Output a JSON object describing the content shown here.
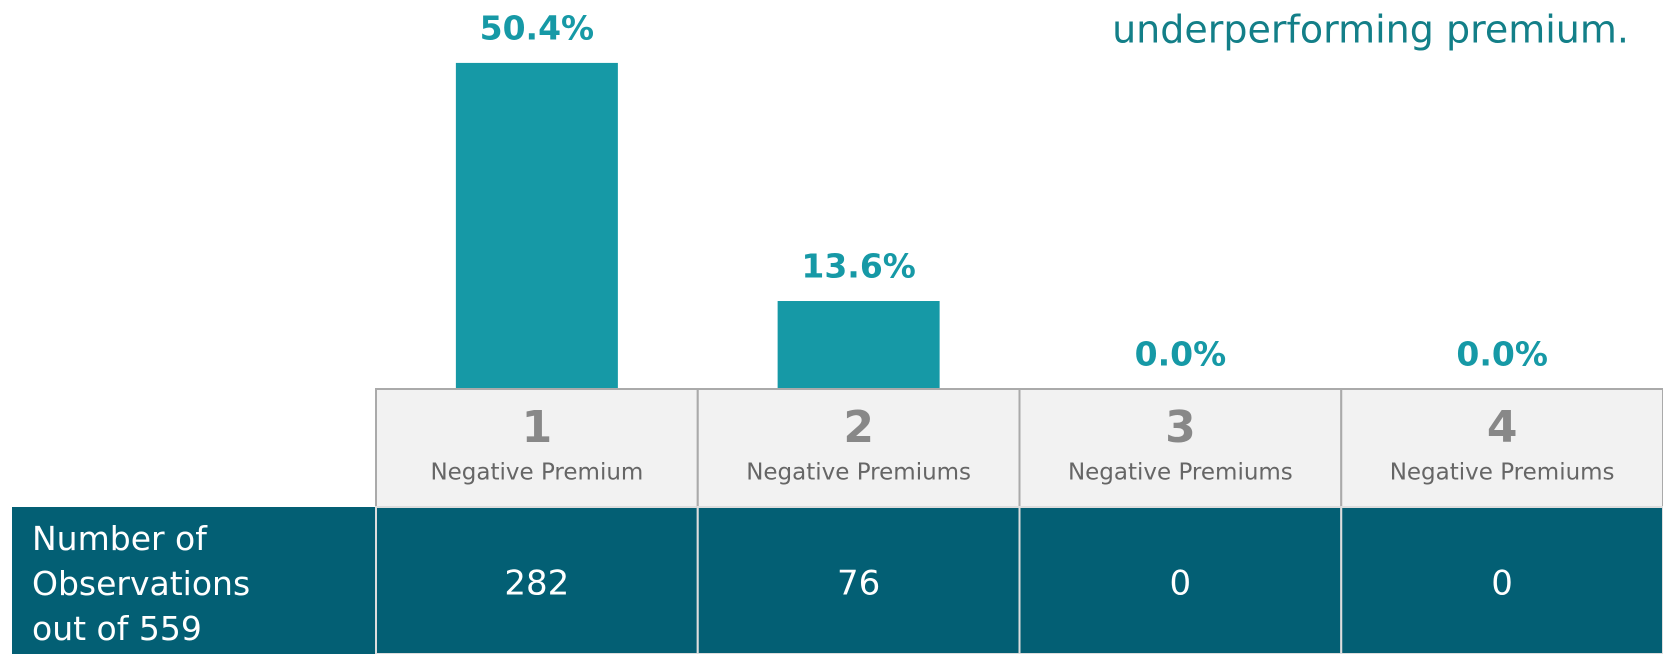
{
  "chart_data": {
    "type": "bar",
    "title": "underperforming premium.",
    "categories": [
      "1",
      "2",
      "3",
      "4"
    ],
    "category_labels": [
      "Negative Premium",
      "Negative Premiums",
      "Negative Premiums",
      "Negative Premiums"
    ],
    "values": [
      50.4,
      13.6,
      0,
      0
    ],
    "value_labels": [
      "50.4%",
      "13.6%",
      "0.0%",
      "0.0%"
    ],
    "color": "#1699a6",
    "table": {
      "row_label": "Number of Observations out of",
      "total": 559,
      "counts": [
        282,
        76,
        0,
        0
      ]
    }
  }
}
